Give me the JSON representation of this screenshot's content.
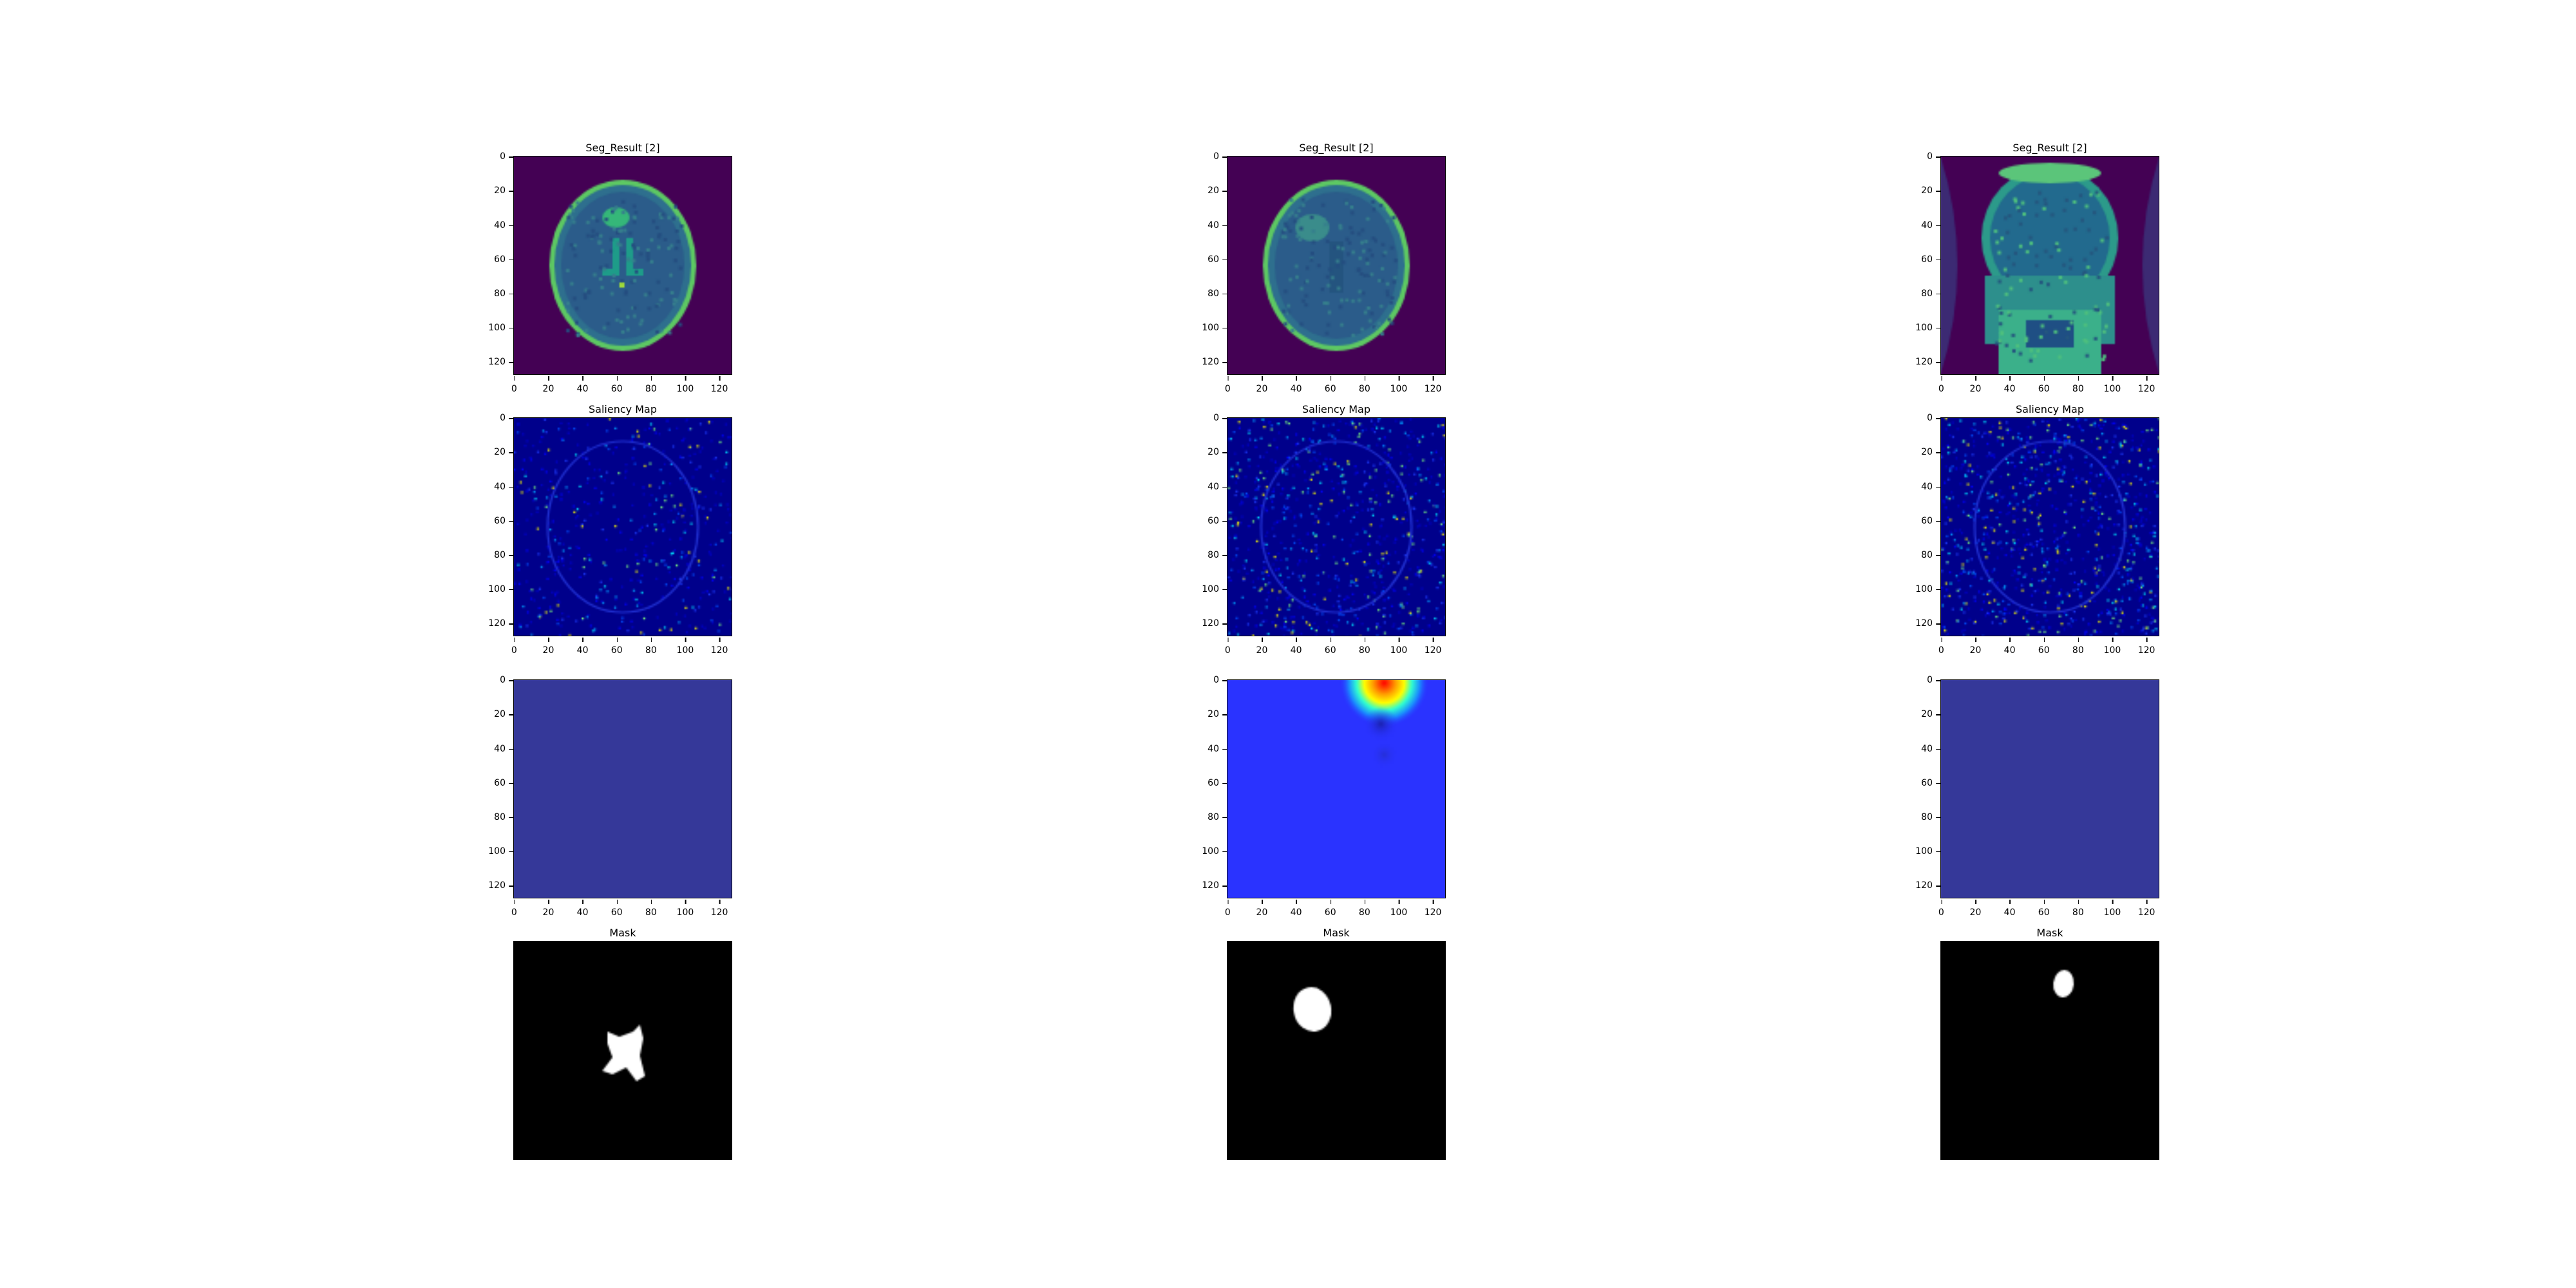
{
  "figure": {
    "rows": [
      {
        "kind": "seg",
        "title": "Seg_Result [2]",
        "axes": true
      },
      {
        "kind": "saliency",
        "title": "Saliency Map",
        "axes": true
      },
      {
        "kind": "heat",
        "title": "",
        "axes": true
      },
      {
        "kind": "mask",
        "title": "Mask",
        "axes": false
      }
    ],
    "columns": [
      {
        "seg": "axial-1",
        "heat": "uniform",
        "mask": "x-shape"
      },
      {
        "seg": "axial-2",
        "heat": "hotspot-top",
        "mask": "blob-left"
      },
      {
        "seg": "coronal",
        "heat": "uniform",
        "mask": "blob-top"
      }
    ],
    "ticks": {
      "x": [
        "0",
        "20",
        "40",
        "60",
        "80",
        "100",
        "120"
      ],
      "y": [
        "0",
        "20",
        "40",
        "60",
        "80",
        "100",
        "120"
      ]
    },
    "colors": {
      "seg_background": "#440154",
      "saliency_background": "#00008b",
      "uniform_heat": "#353899",
      "hot_heat_background": "#2a33ff",
      "mask_background": "#000000",
      "mask_foreground": "#ffffff"
    },
    "image_size": 128
  }
}
